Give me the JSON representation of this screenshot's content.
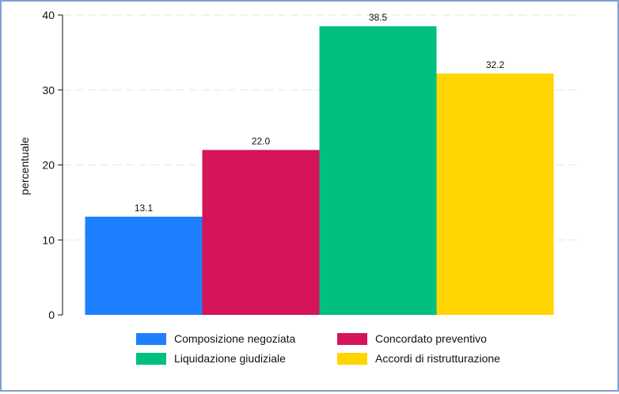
{
  "chart_data": {
    "type": "bar",
    "ylabel": "percentuale",
    "xlabel": "",
    "ylim": [
      0,
      40
    ],
    "yticks": [
      0,
      10,
      20,
      30,
      40
    ],
    "grid": true,
    "legend_position": "bottom",
    "series": [
      {
        "name": "Composizione negoziata",
        "value": 13.1,
        "label": "13.1",
        "color": "#1e7fff"
      },
      {
        "name": "Concordato preventivo",
        "value": 22.0,
        "label": "22.0",
        "color": "#d5145a"
      },
      {
        "name": "Liquidazione giudiziale",
        "value": 38.5,
        "label": "38.5",
        "color": "#00c07f"
      },
      {
        "name": "Accordi di ristrutturazione",
        "value": 32.2,
        "label": "32.2",
        "color": "#ffd400"
      }
    ]
  }
}
